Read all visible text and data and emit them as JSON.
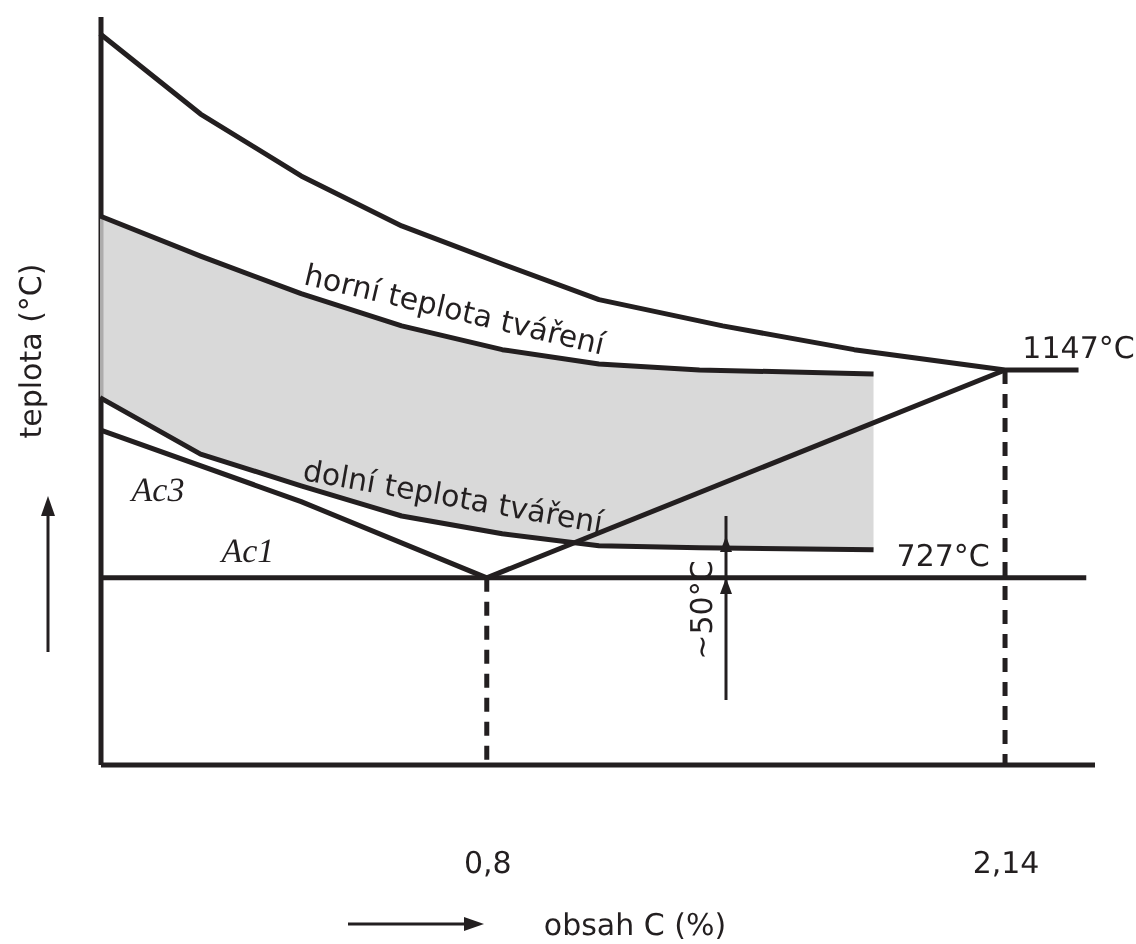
{
  "chart_data": {
    "type": "line",
    "xlabel": "obsah C (%)",
    "ylabel": "teplota (°C)",
    "xlim": [
      -0.2,
      2.37
    ],
    "ylim": [
      351,
      1862
    ],
    "xticks": [
      {
        "value": 0.8,
        "label": "0,8"
      },
      {
        "value": 2.14,
        "label": "2,14"
      }
    ],
    "tick_labels": "x",
    "grid": false,
    "series": [
      {
        "color": "#231f20",
        "x": [
          -0.2,
          0.06,
          0.32,
          0.58,
          0.84,
          1.09,
          1.41,
          1.75,
          2.14,
          2.33
        ],
        "values": [
          1826,
          1664,
          1539,
          1438,
          1361,
          1289,
          1236,
          1188,
          1147,
          1147
        ],
        "value_labels": [
          null,
          null,
          null,
          null,
          null,
          null,
          null,
          null,
          null,
          "1147°C"
        ]
      },
      {
        "name": "horní teplota tváření",
        "color": "#231f20",
        "x": [
          -0.2,
          0.06,
          0.32,
          0.58,
          0.84,
          1.09,
          1.35,
          1.8
        ],
        "values": [
          1458,
          1377,
          1301,
          1236,
          1188,
          1159,
          1147,
          1139
        ],
        "lower": [
          1091,
          977,
          913,
          852,
          816,
          792,
          788,
          784
        ],
        "upper": [
          1458,
          1377,
          1301,
          1236,
          1188,
          1159,
          1147,
          1139
        ]
      },
      {
        "name": "dolní teplota tváření",
        "color": "#231f20",
        "x": [
          -0.2,
          0.06,
          0.32,
          0.58,
          0.84,
          1.09,
          1.35,
          1.8
        ],
        "values": [
          1091,
          977,
          913,
          852,
          816,
          792,
          788,
          784
        ]
      },
      {
        "name": "Ac3",
        "color": "#231f20",
        "x": [
          -0.2,
          0.32,
          0.8
        ],
        "values": [
          1026,
          881,
          727
        ]
      },
      {
        "name": "Ac1",
        "color": "#231f20",
        "x": [
          -0.2,
          1.98,
          2.35
        ],
        "values": [
          727,
          727,
          727
        ],
        "value_labels": [
          null,
          "727°C",
          null
        ]
      },
      {
        "color": "#231f20",
        "x": [
          0.8,
          2.14
        ],
        "values": [
          727,
          1147
        ]
      },
      {
        "color": "#231f20",
        "x": [
          0.8,
          0.8
        ],
        "values": [
          727,
          351
        ],
        "line_style": "dashed"
      },
      {
        "color": "#231f20",
        "x": [
          2.14,
          2.14
        ],
        "values": [
          1147,
          351
        ],
        "line_style": "dashed"
      }
    ],
    "annotations": [
      "~50°C"
    ]
  }
}
